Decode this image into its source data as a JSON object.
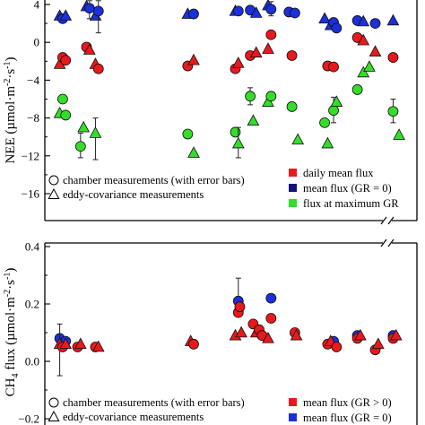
{
  "chart_data": [
    {
      "type": "scatter",
      "ylabel": "NEE (µmol·m⁻²·s⁻¹)",
      "ylabel_main": "NEE (µmol·m",
      "ylabel_sup1": "-2",
      "ylabel_mid": "·s",
      "ylabel_sup2": "-1",
      "ylabel_end": ")",
      "ylim": [
        -18,
        4
      ],
      "yticks": [
        4,
        0,
        -4,
        -8,
        -12,
        -16
      ],
      "ytick_labels": [
        "4",
        "0",
        "−4",
        "−8",
        "−12",
        "−16"
      ],
      "legend_shapes": [
        {
          "symbol": "circle",
          "label": "chamber measurements (with error bars)"
        },
        {
          "symbol": "triangle",
          "label": "eddy-covariance measurements"
        }
      ],
      "legend_colors": [
        {
          "color": "#e8191c",
          "label": "daily mean flux"
        },
        {
          "color": "#13137f",
          "label": "mean flux (GR = 0)"
        },
        {
          "color": "#33dd2a",
          "label": "flux at maximum GR"
        }
      ],
      "series": [
        {
          "color": "#1c2fd8",
          "points": [
            {
              "x": 1.0,
              "y": 2.8,
              "s": "t"
            },
            {
              "x": 1.1,
              "y": 2.5,
              "s": "c"
            },
            {
              "x": 1.2,
              "y": 2.8,
              "s": "t"
            },
            {
              "x": 1.9,
              "y": 3.8,
              "s": "t"
            },
            {
              "x": 2.0,
              "y": 3.6,
              "s": "c",
              "e": [
                2.5,
                4.4
              ]
            },
            {
              "x": 2.2,
              "y": 2.8,
              "s": "t"
            },
            {
              "x": 2.3,
              "y": 3.3,
              "s": "c",
              "e": [
                1.0,
                4.4
              ]
            },
            {
              "x": 5.3,
              "y": 3.0,
              "s": "t"
            },
            {
              "x": 5.5,
              "y": 3.0,
              "s": "c"
            },
            {
              "x": 6.9,
              "y": 3.3,
              "s": "t"
            },
            {
              "x": 7.0,
              "y": 3.3,
              "s": "c"
            },
            {
              "x": 7.4,
              "y": 3.4,
              "s": "c"
            },
            {
              "x": 7.6,
              "y": 3.1,
              "s": "t"
            },
            {
              "x": 8.0,
              "y": 3.9,
              "s": "t"
            },
            {
              "x": 8.1,
              "y": 3.5,
              "s": "c",
              "e": [
                2.8,
                4.3
              ]
            },
            {
              "x": 8.7,
              "y": 3.2,
              "s": "c"
            },
            {
              "x": 8.9,
              "y": 3.1,
              "s": "c"
            },
            {
              "x": 9.9,
              "y": 2.5,
              "s": "t"
            },
            {
              "x": 10.1,
              "y": 1.8,
              "s": "t"
            },
            {
              "x": 10.2,
              "y": 2.1,
              "s": "c"
            },
            {
              "x": 10.3,
              "y": 1.5,
              "s": "c"
            },
            {
              "x": 11.0,
              "y": 2.3,
              "s": "c"
            },
            {
              "x": 11.2,
              "y": 2.2,
              "s": "t"
            },
            {
              "x": 11.6,
              "y": 2.0,
              "s": "c"
            },
            {
              "x": 12.2,
              "y": 2.3,
              "s": "t"
            }
          ]
        },
        {
          "color": "#e8191c",
          "points": [
            {
              "x": 1.0,
              "y": -2.3,
              "s": "t"
            },
            {
              "x": 1.1,
              "y": -1.6,
              "s": "c"
            },
            {
              "x": 1.2,
              "y": -1.9,
              "s": "c"
            },
            {
              "x": 1.9,
              "y": -0.5,
              "s": "c"
            },
            {
              "x": 2.0,
              "y": -0.8,
              "s": "t"
            },
            {
              "x": 2.2,
              "y": -2.3,
              "s": "t"
            },
            {
              "x": 2.3,
              "y": -2.8,
              "s": "c"
            },
            {
              "x": 5.3,
              "y": -2.5,
              "s": "c"
            },
            {
              "x": 5.5,
              "y": -1.9,
              "s": "t"
            },
            {
              "x": 6.9,
              "y": -2.8,
              "s": "c"
            },
            {
              "x": 7.0,
              "y": -2.2,
              "s": "t"
            },
            {
              "x": 7.4,
              "y": -1.4,
              "s": "c"
            },
            {
              "x": 7.6,
              "y": -1.1,
              "s": "t"
            },
            {
              "x": 8.0,
              "y": -0.7,
              "s": "t"
            },
            {
              "x": 8.1,
              "y": 0.8,
              "s": "c"
            },
            {
              "x": 8.8,
              "y": -1.4,
              "s": "c"
            },
            {
              "x": 10.0,
              "y": -2.5,
              "s": "c"
            },
            {
              "x": 10.2,
              "y": -2.6,
              "s": "c"
            },
            {
              "x": 11.0,
              "y": 0.5,
              "s": "c"
            },
            {
              "x": 11.2,
              "y": 0.2,
              "s": "t"
            },
            {
              "x": 11.6,
              "y": -1.0,
              "s": "t"
            },
            {
              "x": 12.2,
              "y": -1.6,
              "s": "c"
            }
          ]
        },
        {
          "color": "#33dd2a",
          "points": [
            {
              "x": 1.0,
              "y": -7.5,
              "s": "t"
            },
            {
              "x": 1.1,
              "y": -6.0,
              "s": "c"
            },
            {
              "x": 1.2,
              "y": -7.7,
              "s": "c"
            },
            {
              "x": 1.7,
              "y": -11.0,
              "s": "c",
              "e": [
                -12.2,
                -9.6
              ]
            },
            {
              "x": 1.8,
              "y": -9.0,
              "s": "t"
            },
            {
              "x": 2.2,
              "y": -9.6,
              "s": "t",
              "e": [
                -12.4,
                -8.0
              ]
            },
            {
              "x": 5.3,
              "y": -9.7,
              "s": "c"
            },
            {
              "x": 5.5,
              "y": -11.7,
              "s": "t"
            },
            {
              "x": 6.9,
              "y": -9.5,
              "s": "c"
            },
            {
              "x": 7.0,
              "y": -10.7,
              "s": "t",
              "e": [
                -12.2,
                -9.0
              ]
            },
            {
              "x": 7.4,
              "y": -5.7,
              "s": "c",
              "e": [
                -6.6,
                -4.8
              ]
            },
            {
              "x": 7.5,
              "y": -8.3,
              "s": "t"
            },
            {
              "x": 8.0,
              "y": -6.3,
              "s": "t"
            },
            {
              "x": 8.1,
              "y": -5.7,
              "s": "c"
            },
            {
              "x": 8.8,
              "y": -6.8,
              "s": "c"
            },
            {
              "x": 9.0,
              "y": -10.3,
              "s": "t"
            },
            {
              "x": 9.9,
              "y": -8.5,
              "s": "c"
            },
            {
              "x": 10.0,
              "y": -10.7,
              "s": "t"
            },
            {
              "x": 10.2,
              "y": -7.2,
              "s": "c",
              "e": [
                -8.5,
                -5.8
              ]
            },
            {
              "x": 10.3,
              "y": -6.3,
              "s": "t"
            },
            {
              "x": 11.0,
              "y": -5.0,
              "s": "c"
            },
            {
              "x": 11.2,
              "y": -3.2,
              "s": "t"
            },
            {
              "x": 11.4,
              "y": -2.6,
              "s": "t"
            },
            {
              "x": 12.2,
              "y": -7.3,
              "s": "c",
              "e": [
                -8.5,
                -6.0
              ]
            },
            {
              "x": 12.4,
              "y": -9.8,
              "s": "t"
            }
          ]
        }
      ]
    },
    {
      "type": "scatter",
      "ylabel": "CH₄ flux (µmol·m⁻²·s⁻¹)",
      "ylabel_main": "CH",
      "ylabel_sub": "4",
      "ylabel_mid": " flux (µmol·m",
      "ylabel_sup1": "-2",
      "ylabel_mid2": "·s",
      "ylabel_sup2": "-1",
      "ylabel_end": ")",
      "ylim": [
        -0.2,
        0.4
      ],
      "yticks": [
        0.4,
        0.2,
        0.0,
        -0.2
      ],
      "ytick_labels": [
        "0.4",
        "0.2",
        "0.0",
        "−0.2"
      ],
      "legend_shapes": [
        {
          "symbol": "circle",
          "label": "chamber measurements (with error bars)"
        },
        {
          "symbol": "triangle",
          "label": "eddy-covariance measurements"
        }
      ],
      "legend_colors": [
        {
          "color": "#e8191c",
          "label": "mean flux (GR > 0)"
        },
        {
          "color": "#1c2fd8",
          "label": "mean flux (GR = 0)"
        }
      ],
      "series": [
        {
          "color": "#1c2fd8",
          "points": [
            {
              "x": 1.0,
              "y": 0.08,
              "s": "c"
            },
            {
              "x": 1.2,
              "y": 0.07,
              "s": "c"
            },
            {
              "x": 7.0,
              "y": 0.21,
              "s": "c",
              "e": [
                0.19,
                0.29
              ]
            },
            {
              "x": 8.1,
              "y": 0.22,
              "s": "c"
            },
            {
              "x": 10.2,
              "y": 0.07,
              "s": "c"
            },
            {
              "x": 11.0,
              "y": 0.09,
              "s": "c"
            },
            {
              "x": 12.2,
              "y": 0.09,
              "s": "c"
            }
          ]
        },
        {
          "color": "#e8191c",
          "points": [
            {
              "x": 1.0,
              "y": 0.06,
              "s": "t",
              "e": [
                -0.05,
                0.13
              ]
            },
            {
              "x": 1.1,
              "y": 0.05,
              "s": "c"
            },
            {
              "x": 1.2,
              "y": 0.06,
              "s": "t"
            },
            {
              "x": 1.6,
              "y": 0.05,
              "s": "c"
            },
            {
              "x": 1.7,
              "y": 0.06,
              "s": "t"
            },
            {
              "x": 2.2,
              "y": 0.05,
              "s": "c"
            },
            {
              "x": 2.3,
              "y": 0.05,
              "s": "t"
            },
            {
              "x": 5.4,
              "y": 0.07,
              "s": "t"
            },
            {
              "x": 5.5,
              "y": 0.06,
              "s": "c"
            },
            {
              "x": 6.9,
              "y": 0.09,
              "s": "t"
            },
            {
              "x": 7.0,
              "y": 0.17,
              "s": "c"
            },
            {
              "x": 7.05,
              "y": 0.19,
              "s": "c"
            },
            {
              "x": 7.1,
              "y": 0.1,
              "s": "t"
            },
            {
              "x": 7.5,
              "y": 0.13,
              "s": "c"
            },
            {
              "x": 7.6,
              "y": 0.1,
              "s": "t"
            },
            {
              "x": 7.7,
              "y": 0.11,
              "s": "c"
            },
            {
              "x": 7.8,
              "y": 0.09,
              "s": "c"
            },
            {
              "x": 8.0,
              "y": 0.08,
              "s": "t"
            },
            {
              "x": 8.1,
              "y": 0.15,
              "s": "c"
            },
            {
              "x": 8.9,
              "y": 0.1,
              "s": "c"
            },
            {
              "x": 8.95,
              "y": 0.09,
              "s": "t"
            },
            {
              "x": 10.0,
              "y": 0.06,
              "s": "c"
            },
            {
              "x": 10.1,
              "y": 0.07,
              "s": "t"
            },
            {
              "x": 10.3,
              "y": 0.05,
              "s": "c"
            },
            {
              "x": 11.0,
              "y": 0.08,
              "s": "c"
            },
            {
              "x": 11.1,
              "y": 0.09,
              "s": "t"
            },
            {
              "x": 11.6,
              "y": 0.04,
              "s": "c"
            },
            {
              "x": 11.7,
              "y": 0.06,
              "s": "t"
            },
            {
              "x": 12.2,
              "y": 0.08,
              "s": "c"
            },
            {
              "x": 12.3,
              "y": 0.09,
              "s": "t"
            }
          ]
        }
      ]
    }
  ]
}
